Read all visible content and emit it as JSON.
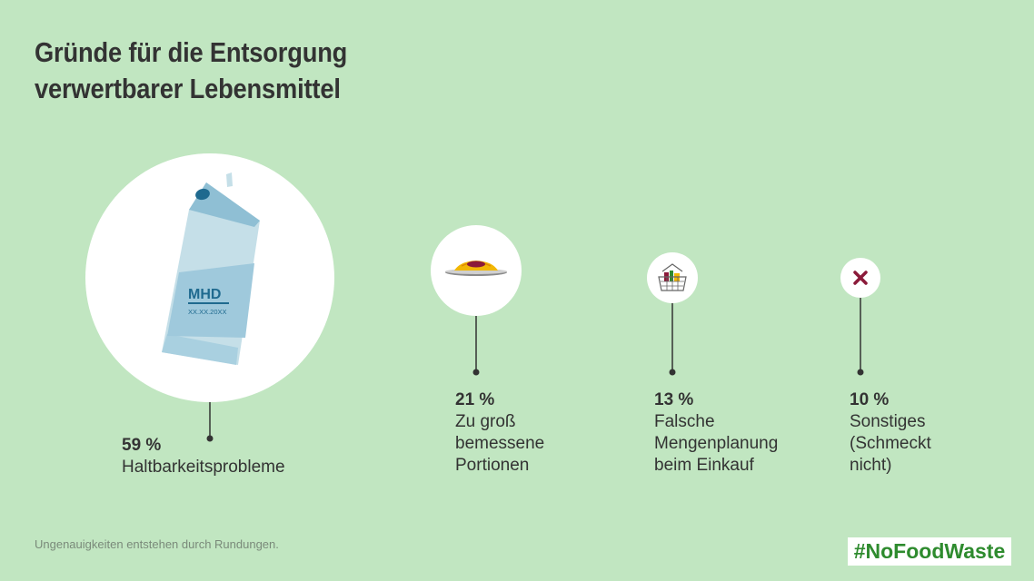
{
  "title_lines": [
    "Gründe für die Entsorgung",
    "verwertbarer Lebensmittel"
  ],
  "chart_data": {
    "type": "bubble",
    "title": "Gründe für die Entsorgung verwertbarer Lebensmittel",
    "unit": "%",
    "items": [
      {
        "value": 59,
        "label_pct": "59 %",
        "label_text": "Haltbarkeitsprobleme",
        "icon": "milk-carton-icon"
      },
      {
        "value": 21,
        "label_pct": "21 %",
        "label_text": "Zu groß\nbemessene\nPortionen",
        "icon": "pasta-plate-icon"
      },
      {
        "value": 13,
        "label_pct": "13 %",
        "label_text": "Falsche\nMengenplanung\nbeim Einkauf",
        "icon": "shopping-basket-icon"
      },
      {
        "value": 10,
        "label_pct": "10 %",
        "label_text": "Sonstiges\n(Schmeckt\nnicht)",
        "icon": "x-mark-icon"
      }
    ],
    "icon_texts": {
      "carton_label": "MHD",
      "carton_date": "XX.XX.20XX"
    }
  },
  "footnote": "Ungenauigkeiten entstehen durch Rundungen.",
  "hashtag": "#NoFoodWaste",
  "colors": {
    "background": "#c1e6c1",
    "circle": "#ffffff",
    "text": "#333333",
    "carton_light": "#c5dfe8",
    "carton_mid": "#8fbfd4",
    "carton_dark": "#1f6a8f",
    "x_mark": "#8b1a3a",
    "hashtag": "#2e8b2e"
  }
}
